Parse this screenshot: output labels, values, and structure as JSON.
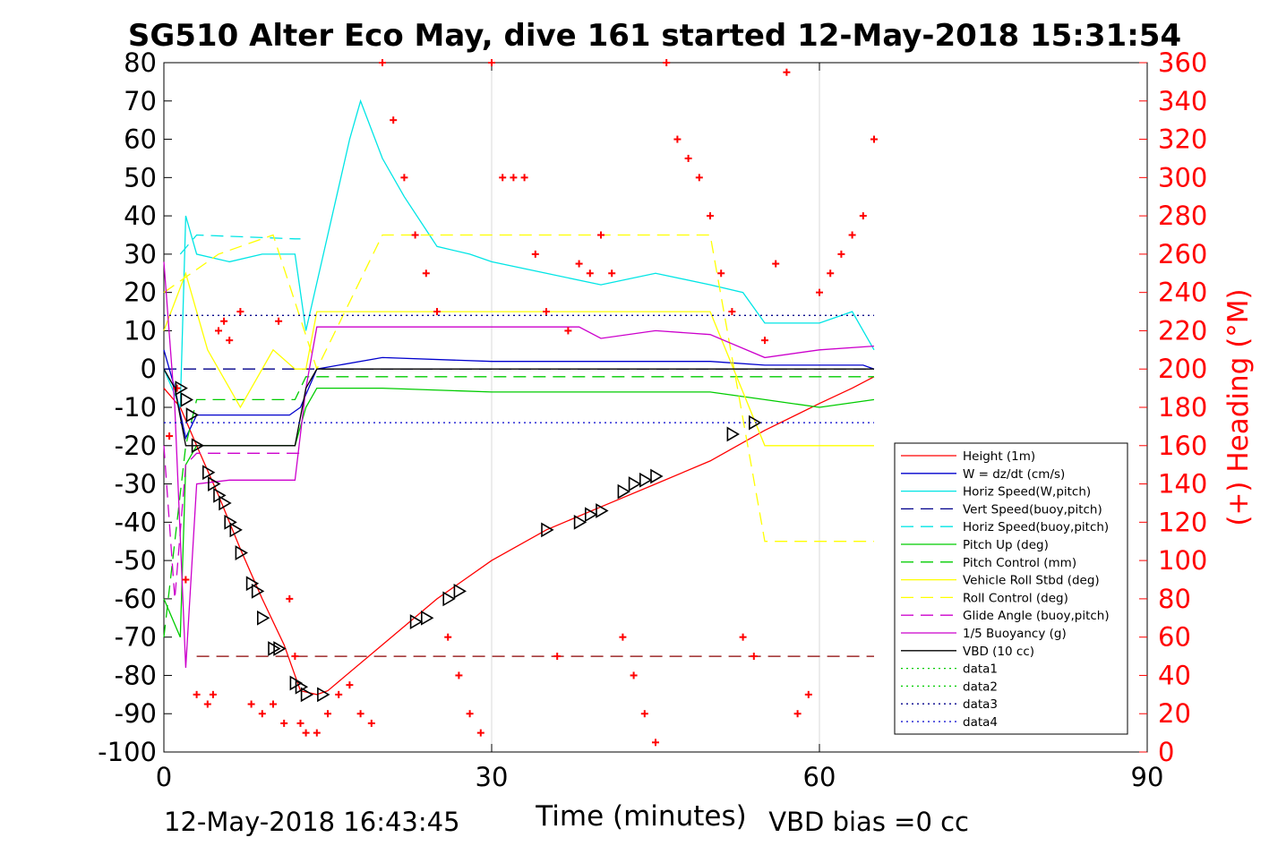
{
  "footer": {
    "left_timestamp": "12-May-2018 16:43:45",
    "right_note": "VBD bias =0 cc"
  },
  "chart_data": {
    "type": "line",
    "title": "SG510 Alter Eco May, dive 161 started 12-May-2018 15:31:54",
    "xlabel": "Time (minutes)",
    "ylabel": "",
    "y2label": "(+) Heading (°M)",
    "xlim": [
      0,
      90
    ],
    "ylim": [
      -100,
      80
    ],
    "y2lim": [
      0,
      360
    ],
    "xticks": [
      0,
      30,
      60,
      90
    ],
    "yticks": [
      -100,
      -90,
      -80,
      -70,
      -60,
      -50,
      -40,
      -30,
      -20,
      -10,
      0,
      10,
      20,
      30,
      40,
      50,
      60,
      70,
      80
    ],
    "y2ticks": [
      0,
      20,
      40,
      60,
      80,
      100,
      120,
      140,
      160,
      180,
      200,
      220,
      240,
      260,
      280,
      300,
      320,
      340,
      360
    ],
    "grid": true,
    "legend_position": "lower-right",
    "colors": {
      "right_axis": "#ff0000",
      "heading_marker": "#ff0000"
    },
    "series": [
      {
        "name": "Height (1m)",
        "color": "#ff0000",
        "style": "solid",
        "x": [
          0,
          1.5,
          3,
          5,
          7,
          9,
          11,
          12.5,
          14,
          15,
          20,
          25,
          30,
          35,
          40,
          45,
          50,
          55,
          60,
          63,
          65
        ],
        "y": [
          -5,
          -10,
          -20,
          -33,
          -47,
          -60,
          -72,
          -84,
          -85,
          -84,
          -72,
          -60,
          -50,
          -42,
          -36,
          -30,
          -24,
          -16,
          -9,
          -5,
          -2
        ]
      },
      {
        "name": "W = dz/dt (cm/s)",
        "color": "#0000cd",
        "style": "solid",
        "x": [
          0,
          1,
          2,
          3,
          6,
          9,
          11.5,
          12.5,
          14,
          20,
          30,
          40,
          50,
          55,
          60,
          64,
          65
        ],
        "y": [
          5,
          -5,
          -18,
          -12,
          -12,
          -12,
          -12,
          -10,
          0,
          3,
          2,
          2,
          2,
          1,
          1,
          1,
          0
        ]
      },
      {
        "name": "Horiz Speed(W,pitch)",
        "color": "#00e5e5",
        "style": "solid",
        "x": [
          0,
          1.5,
          2,
          3,
          6,
          9,
          12,
          13,
          15,
          17,
          18,
          20,
          22,
          25,
          28,
          30,
          35,
          40,
          45,
          50,
          53,
          55,
          60,
          63,
          65
        ],
        "y": [
          0,
          -10,
          40,
          30,
          28,
          30,
          30,
          10,
          35,
          60,
          70,
          55,
          45,
          32,
          30,
          28,
          25,
          22,
          25,
          22,
          20,
          12,
          12,
          15,
          5
        ]
      },
      {
        "name": "Vert Speed(buoy,pitch)",
        "color": "#00008b",
        "style": "dashed",
        "x": [
          0,
          65
        ],
        "y": [
          0,
          0
        ]
      },
      {
        "name": "Horiz Speed(buoy,pitch)",
        "color": "#00e5e5",
        "style": "dashed",
        "x": [
          1.5,
          3,
          12,
          12.5
        ],
        "y": [
          30,
          35,
          34,
          34
        ]
      },
      {
        "name": "Pitch Up (deg)",
        "color": "#00cc00",
        "style": "solid",
        "x": [
          0,
          1.5,
          2,
          3,
          6,
          9,
          12,
          13,
          14,
          20,
          30,
          40,
          50,
          55,
          60,
          65
        ],
        "y": [
          -60,
          -70,
          -25,
          -20,
          -20,
          -20,
          -20,
          -10,
          -5,
          -5,
          -6,
          -6,
          -6,
          -8,
          -10,
          -8
        ]
      },
      {
        "name": "Pitch Control (mm)",
        "color": "#00cc00",
        "style": "dashed",
        "x": [
          0,
          2,
          3,
          12,
          13,
          65
        ],
        "y": [
          -70,
          -20,
          -8,
          -8,
          -2,
          -2
        ]
      },
      {
        "name": "Vehicle Roll Stbd (deg)",
        "color": "#ffff00",
        "style": "solid",
        "x": [
          0,
          2,
          4,
          7,
          10,
          12,
          13,
          14,
          20,
          30,
          40,
          50,
          55,
          60,
          65
        ],
        "y": [
          10,
          25,
          5,
          -10,
          5,
          0,
          0,
          15,
          15,
          15,
          15,
          15,
          -20,
          -20,
          -20
        ]
      },
      {
        "name": "Roll Control (deg)",
        "color": "#ffff00",
        "style": "dashed",
        "x": [
          0,
          5,
          10,
          14,
          20,
          30,
          40,
          50,
          55,
          60,
          65
        ],
        "y": [
          20,
          30,
          35,
          0,
          35,
          35,
          35,
          35,
          -45,
          -45,
          -45
        ]
      },
      {
        "name": "Glide Angle (buoy,pitch)",
        "color": "#cc00cc",
        "style": "dashed",
        "x": [
          0,
          1,
          2,
          3,
          12,
          12.5
        ],
        "y": [
          -20,
          -60,
          -25,
          -22,
          -22,
          -22
        ]
      },
      {
        "name": "1/5 Buoyancy (g)",
        "color": "#cc00cc",
        "style": "solid",
        "x": [
          0,
          1,
          2,
          3,
          6,
          9,
          12,
          13,
          14,
          20,
          30,
          38,
          40,
          45,
          50,
          55,
          60,
          65
        ],
        "y": [
          28,
          -10,
          -78,
          -30,
          -29,
          -29,
          -29,
          -5,
          11,
          11,
          11,
          11,
          8,
          10,
          9,
          3,
          5,
          6
        ]
      },
      {
        "name": "VBD (10 cc)",
        "color": "#000000",
        "style": "solid",
        "x": [
          0,
          1,
          2,
          3,
          12,
          13,
          14,
          65
        ],
        "y": [
          0,
          -5,
          -20,
          -20,
          -20,
          -5,
          0,
          0
        ]
      },
      {
        "name": "data1",
        "color": "#00cc00",
        "style": "dotted",
        "x": [],
        "y": []
      },
      {
        "name": "data2",
        "color": "#00cc00",
        "style": "dotted",
        "x": [],
        "y": []
      },
      {
        "name": "data3",
        "color": "#00008b",
        "style": "dotted",
        "x": [
          0,
          65
        ],
        "y": [
          14,
          14
        ]
      },
      {
        "name": "data4",
        "color": "#0000cd",
        "style": "dotted",
        "x": [
          0,
          65
        ],
        "y": [
          -14,
          -14
        ]
      }
    ],
    "extra_lines": [
      {
        "color": "#8b0000",
        "style": "dashed",
        "x": [
          3,
          65
        ],
        "y": [
          -75,
          -75
        ]
      }
    ],
    "heading_points": {
      "axis": "right",
      "color": "#ff0000",
      "marker": "+",
      "x": [
        0.5,
        1.2,
        2,
        3,
        4,
        4.5,
        5,
        5.5,
        6,
        7,
        8,
        9,
        10,
        10.5,
        11,
        11.5,
        12,
        12.5,
        13,
        14,
        15,
        16,
        17,
        18,
        19,
        20,
        21,
        22,
        23,
        24,
        25,
        26,
        27,
        28,
        29,
        30,
        31,
        32,
        33,
        34,
        35,
        36,
        37,
        38,
        39,
        40,
        41,
        42,
        43,
        44,
        45,
        46,
        47,
        48,
        49,
        50,
        51,
        52,
        53,
        54,
        55,
        56,
        57,
        58,
        59,
        60,
        61,
        62,
        63,
        64,
        65
      ],
      "y": [
        165,
        190,
        90,
        30,
        25,
        30,
        220,
        225,
        215,
        230,
        25,
        20,
        25,
        225,
        15,
        80,
        50,
        15,
        10,
        10,
        20,
        30,
        35,
        20,
        15,
        360,
        330,
        300,
        270,
        250,
        230,
        60,
        40,
        20,
        10,
        360,
        300,
        300,
        300,
        260,
        230,
        50,
        220,
        255,
        250,
        270,
        250,
        60,
        40,
        20,
        5,
        360,
        320,
        310,
        300,
        280,
        250,
        230,
        60,
        50,
        215,
        255,
        355,
        20,
        30,
        240,
        250,
        260,
        270,
        280,
        320
      ]
    },
    "triangle_markers": {
      "color": "#000000",
      "x": [
        1.5,
        2,
        2.5,
        3,
        4,
        4.5,
        5,
        5.5,
        6,
        6.5,
        7,
        8,
        8.5,
        9,
        10,
        10.5,
        12,
        12.5,
        13,
        14.5,
        23,
        24,
        26,
        27,
        35,
        38,
        39,
        40,
        42,
        43,
        44,
        45,
        52,
        54
      ],
      "y": [
        -5,
        -8,
        -12,
        -20,
        -27,
        -30,
        -33,
        -35,
        -40,
        -42,
        -48,
        -56,
        -58,
        -65,
        -73,
        -73,
        -82,
        -83,
        -85,
        -85,
        -66,
        -65,
        -60,
        -58,
        -42,
        -40,
        -38,
        -37,
        -32,
        -30,
        -29,
        -28,
        -17,
        -14
      ]
    }
  }
}
